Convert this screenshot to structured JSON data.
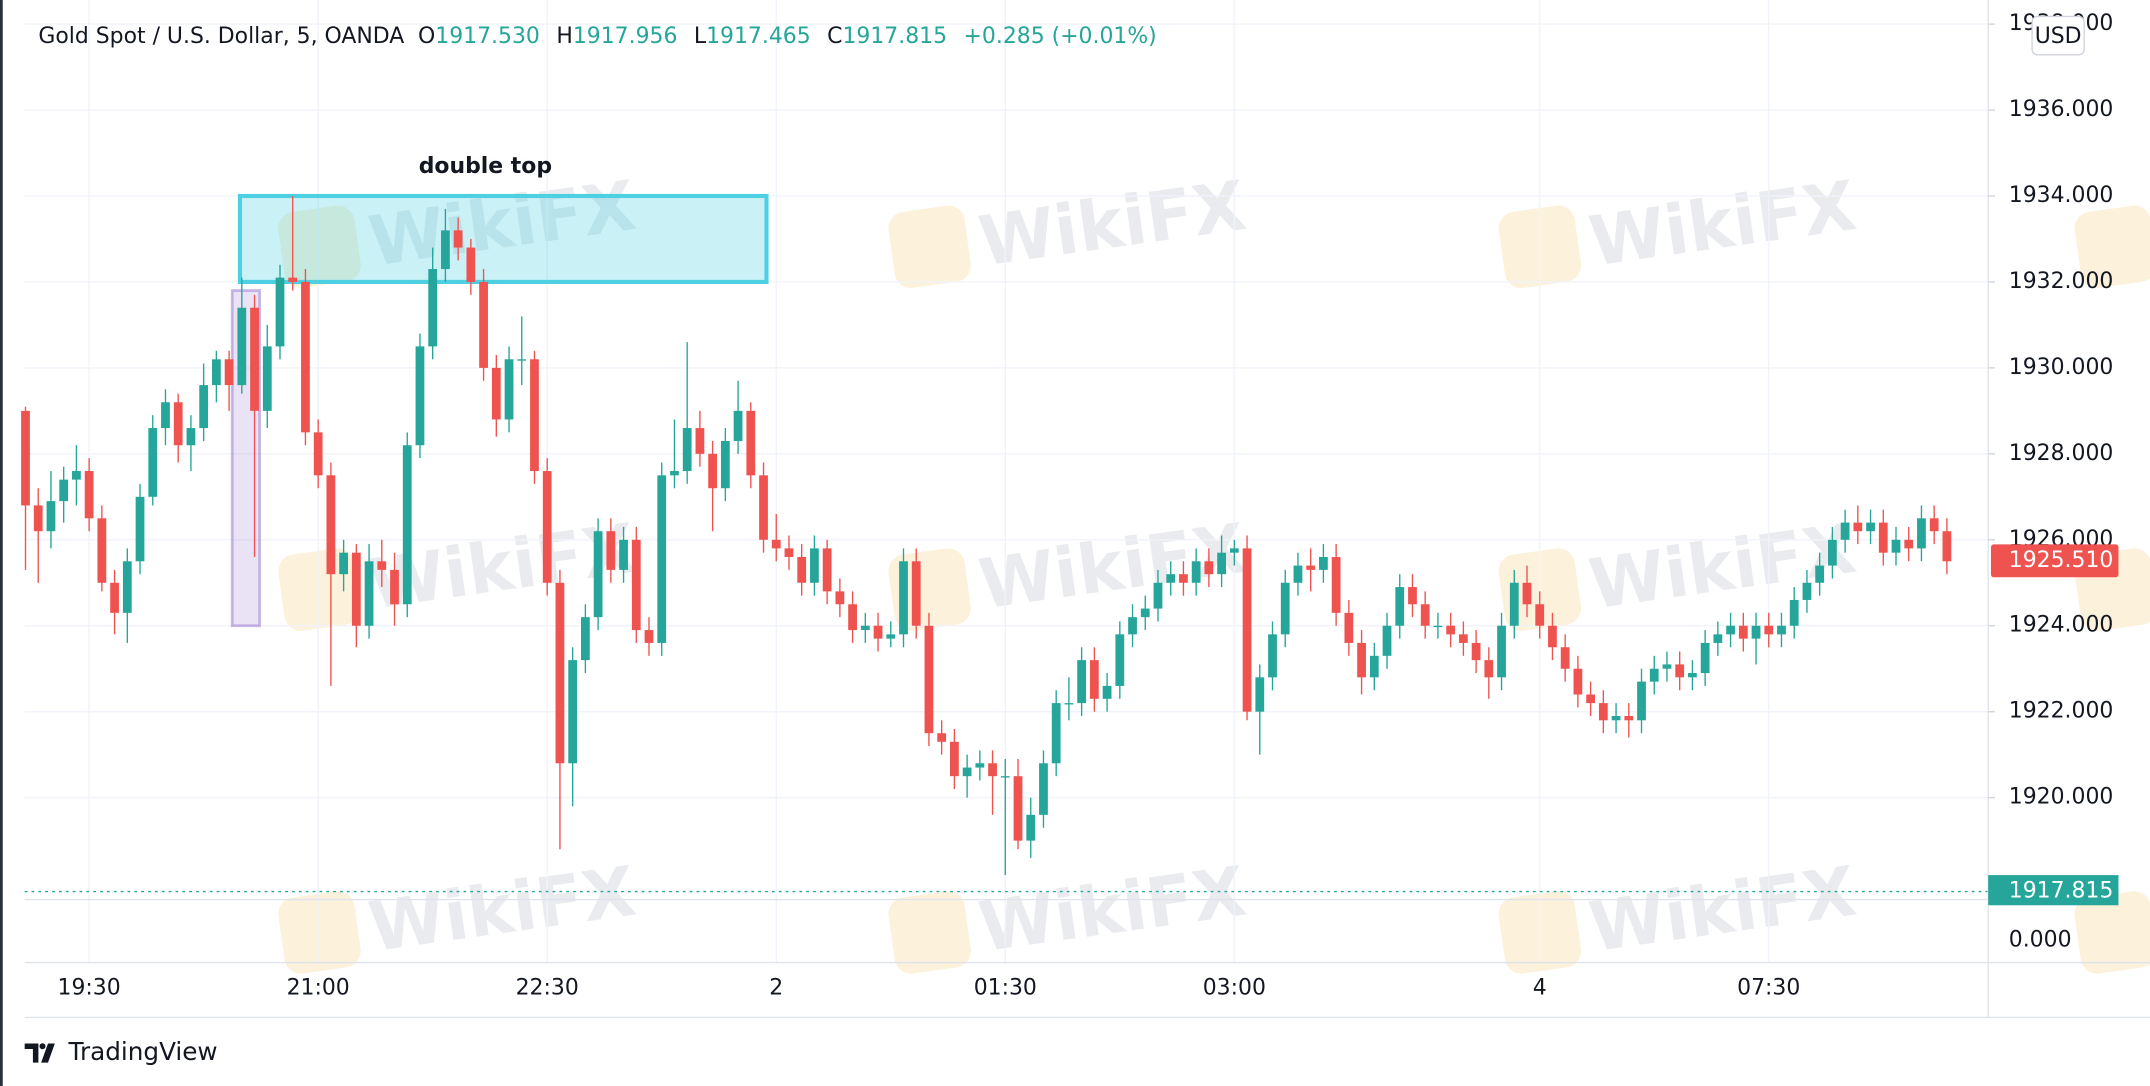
{
  "chart_data": {
    "type": "candlestick",
    "header": {
      "title": "Gold Spot / U.S. Dollar, 5, OANDA",
      "o_label": "O",
      "o_value": "1917.530",
      "h_label": "H",
      "h_value": "1917.956",
      "l_label": "L",
      "l_value": "1917.465",
      "c_label": "C",
      "c_value": "1917.815",
      "change": "+0.285 (+0.01%)"
    },
    "currency": "USD",
    "watermark": "WikiFX",
    "brand": "TradingView",
    "annotation": {
      "label": "double top",
      "y": [
        1932,
        1934
      ]
    },
    "highlight": {
      "y": [
        1924,
        1931.8
      ]
    },
    "last_price": {
      "value": 1925.51,
      "label": "1925.510"
    },
    "close_line": {
      "value": 1917.815,
      "label": "1917.815"
    },
    "lower_pane_label": "0.000",
    "up_color": "#26a69a",
    "down_color": "#ef5350",
    "ylim": [
      1917.63,
      1938.56
    ],
    "yticks": [
      {
        "value": 1920,
        "label": "1920.000"
      },
      {
        "value": 1922,
        "label": "1922.000"
      },
      {
        "value": 1924,
        "label": "1924.000"
      },
      {
        "value": 1926,
        "label": "1926.000"
      },
      {
        "value": 1928,
        "label": "1928.000"
      },
      {
        "value": 1930,
        "label": "1930.000"
      },
      {
        "value": 1932,
        "label": "1932.000"
      },
      {
        "value": 1934,
        "label": "1934.000"
      },
      {
        "value": 1936,
        "label": "1936.000"
      },
      {
        "value": 1938,
        "label": "1938.000"
      }
    ],
    "grid": true,
    "categories": [
      null,
      null,
      null,
      null,
      null,
      "19:30",
      null,
      null,
      null,
      null,
      null,
      null,
      null,
      null,
      null,
      null,
      null,
      null,
      null,
      null,
      null,
      null,
      null,
      "21:00",
      null,
      null,
      null,
      null,
      null,
      null,
      null,
      null,
      null,
      null,
      null,
      null,
      null,
      null,
      null,
      null,
      null,
      "22:30",
      null,
      null,
      null,
      null,
      null,
      null,
      null,
      null,
      null,
      null,
      null,
      null,
      null,
      null,
      null,
      null,
      null,
      "2",
      null,
      null,
      null,
      null,
      null,
      null,
      null,
      null,
      null,
      null,
      null,
      null,
      null,
      null,
      null,
      null,
      null,
      "01:30",
      null,
      null,
      null,
      null,
      null,
      null,
      null,
      null,
      null,
      null,
      null,
      null,
      null,
      null,
      null,
      null,
      null,
      "03:00",
      null,
      null,
      null,
      null,
      null,
      null,
      null,
      null,
      null,
      null,
      null,
      null,
      null,
      null,
      null,
      null,
      null,
      null,
      null,
      null,
      null,
      null,
      null,
      "4",
      null,
      null,
      null,
      null,
      null,
      null,
      null,
      null,
      null,
      null,
      null,
      null,
      null,
      null,
      null,
      null,
      null,
      "07:30",
      null,
      null,
      null,
      null,
      null,
      null,
      null,
      null,
      null,
      null,
      null,
      null,
      null,
      null
    ],
    "ohlc": [
      [
        1929.0,
        1929.1,
        1925.3,
        1926.8
      ],
      [
        1926.8,
        1927.2,
        1925.0,
        1926.2
      ],
      [
        1926.2,
        1927.6,
        1925.8,
        1926.9
      ],
      [
        1926.9,
        1927.7,
        1926.4,
        1927.4
      ],
      [
        1927.4,
        1928.2,
        1926.8,
        1927.6
      ],
      [
        1927.6,
        1927.9,
        1926.2,
        1926.5
      ],
      [
        1926.5,
        1926.8,
        1924.8,
        1925.0
      ],
      [
        1925.0,
        1925.3,
        1923.8,
        1924.3
      ],
      [
        1924.3,
        1925.8,
        1923.6,
        1925.5
      ],
      [
        1925.5,
        1927.3,
        1925.2,
        1927.0
      ],
      [
        1927.0,
        1928.9,
        1926.8,
        1928.6
      ],
      [
        1928.6,
        1929.5,
        1928.2,
        1929.2
      ],
      [
        1929.2,
        1929.4,
        1927.8,
        1928.2
      ],
      [
        1928.2,
        1928.9,
        1927.6,
        1928.6
      ],
      [
        1928.6,
        1930.1,
        1928.3,
        1929.6
      ],
      [
        1929.6,
        1930.4,
        1929.2,
        1930.2
      ],
      [
        1930.2,
        1930.4,
        1929.0,
        1929.6
      ],
      [
        1929.6,
        1932.1,
        1929.4,
        1931.4
      ],
      [
        1931.4,
        1931.7,
        1925.6,
        1929.0
      ],
      [
        1929.0,
        1931.0,
        1928.6,
        1930.5
      ],
      [
        1930.5,
        1932.4,
        1930.2,
        1932.1
      ],
      [
        1932.1,
        1934.0,
        1931.8,
        1932.0
      ],
      [
        1932.0,
        1932.3,
        1928.2,
        1928.5
      ],
      [
        1928.5,
        1928.8,
        1927.2,
        1927.5
      ],
      [
        1927.5,
        1927.8,
        1922.6,
        1925.2
      ],
      [
        1925.2,
        1926.0,
        1924.8,
        1925.7
      ],
      [
        1925.7,
        1925.9,
        1923.5,
        1924.0
      ],
      [
        1924.0,
        1925.9,
        1923.7,
        1925.5
      ],
      [
        1925.5,
        1926.0,
        1924.9,
        1925.3
      ],
      [
        1925.3,
        1925.7,
        1924.0,
        1924.5
      ],
      [
        1924.5,
        1928.5,
        1924.2,
        1928.2
      ],
      [
        1928.2,
        1930.8,
        1927.9,
        1930.5
      ],
      [
        1930.5,
        1932.8,
        1930.2,
        1932.3
      ],
      [
        1932.3,
        1933.7,
        1932.0,
        1933.2
      ],
      [
        1933.2,
        1933.5,
        1932.5,
        1932.8
      ],
      [
        1932.8,
        1933.0,
        1931.7,
        1932.0
      ],
      [
        1932.0,
        1932.3,
        1929.7,
        1930.0
      ],
      [
        1930.0,
        1930.3,
        1928.4,
        1928.8
      ],
      [
        1928.8,
        1930.5,
        1928.5,
        1930.2
      ],
      [
        1930.2,
        1931.2,
        1929.6,
        1930.2
      ],
      [
        1930.2,
        1930.4,
        1927.3,
        1927.6
      ],
      [
        1927.6,
        1927.9,
        1924.7,
        1925.0
      ],
      [
        1925.0,
        1925.3,
        1918.8,
        1920.8
      ],
      [
        1920.8,
        1923.5,
        1919.8,
        1923.2
      ],
      [
        1923.2,
        1924.5,
        1922.9,
        1924.2
      ],
      [
        1924.2,
        1926.5,
        1923.9,
        1926.2
      ],
      [
        1926.2,
        1926.5,
        1925.0,
        1925.3
      ],
      [
        1925.3,
        1926.3,
        1925.0,
        1926.0
      ],
      [
        1926.0,
        1926.3,
        1923.6,
        1923.9
      ],
      [
        1923.9,
        1924.2,
        1923.3,
        1923.6
      ],
      [
        1923.6,
        1927.8,
        1923.3,
        1927.5
      ],
      [
        1927.5,
        1928.8,
        1927.2,
        1927.6
      ],
      [
        1927.6,
        1930.6,
        1927.3,
        1928.6
      ],
      [
        1928.6,
        1929.0,
        1927.7,
        1928.0
      ],
      [
        1928.0,
        1928.3,
        1926.2,
        1927.2
      ],
      [
        1927.2,
        1928.6,
        1926.9,
        1928.3
      ],
      [
        1928.3,
        1929.7,
        1928.0,
        1929.0
      ],
      [
        1929.0,
        1929.2,
        1927.2,
        1927.5
      ],
      [
        1927.5,
        1927.8,
        1925.7,
        1926.0
      ],
      [
        1926.0,
        1926.6,
        1925.5,
        1925.8
      ],
      [
        1925.8,
        1926.1,
        1925.3,
        1925.6
      ],
      [
        1925.6,
        1925.9,
        1924.7,
        1925.0
      ],
      [
        1925.0,
        1926.1,
        1924.7,
        1925.8
      ],
      [
        1925.8,
        1926.0,
        1924.5,
        1924.8
      ],
      [
        1924.8,
        1925.1,
        1924.2,
        1924.5
      ],
      [
        1924.5,
        1924.8,
        1923.6,
        1923.9
      ],
      [
        1923.9,
        1924.3,
        1923.6,
        1924.0
      ],
      [
        1924.0,
        1924.3,
        1923.4,
        1923.7
      ],
      [
        1923.7,
        1924.1,
        1923.5,
        1923.8
      ],
      [
        1923.8,
        1925.8,
        1923.5,
        1925.5
      ],
      [
        1925.5,
        1925.8,
        1923.7,
        1924.0
      ],
      [
        1924.0,
        1924.3,
        1921.2,
        1921.5
      ],
      [
        1921.5,
        1921.8,
        1921.0,
        1921.3
      ],
      [
        1921.3,
        1921.6,
        1920.2,
        1920.5
      ],
      [
        1920.5,
        1921.0,
        1920.0,
        1920.7
      ],
      [
        1920.7,
        1921.1,
        1920.4,
        1920.8
      ],
      [
        1920.8,
        1921.1,
        1919.6,
        1920.5
      ],
      [
        1920.5,
        1920.9,
        1918.2,
        1920.5
      ],
      [
        1920.5,
        1920.9,
        1918.8,
        1919.0
      ],
      [
        1919.0,
        1920.0,
        1918.6,
        1919.6
      ],
      [
        1919.6,
        1921.1,
        1919.3,
        1920.8
      ],
      [
        1920.8,
        1922.5,
        1920.5,
        1922.2
      ],
      [
        1922.2,
        1922.8,
        1921.8,
        1922.2
      ],
      [
        1922.2,
        1923.5,
        1921.9,
        1923.2
      ],
      [
        1923.2,
        1923.5,
        1922.0,
        1922.3
      ],
      [
        1922.3,
        1922.9,
        1922.0,
        1922.6
      ],
      [
        1922.6,
        1924.1,
        1922.3,
        1923.8
      ],
      [
        1923.8,
        1924.5,
        1923.5,
        1924.2
      ],
      [
        1924.2,
        1924.7,
        1923.9,
        1924.4
      ],
      [
        1924.4,
        1925.3,
        1924.1,
        1925.0
      ],
      [
        1925.0,
        1925.5,
        1924.7,
        1925.2
      ],
      [
        1925.2,
        1925.5,
        1924.7,
        1925.0
      ],
      [
        1925.0,
        1925.8,
        1924.7,
        1925.5
      ],
      [
        1925.5,
        1925.8,
        1924.9,
        1925.2
      ],
      [
        1925.2,
        1926.1,
        1924.9,
        1925.7
      ],
      [
        1925.7,
        1926.0,
        1925.4,
        1925.8
      ],
      [
        1925.8,
        1926.1,
        1921.8,
        1922.0
      ],
      [
        1922.0,
        1923.1,
        1921.0,
        1922.8
      ],
      [
        1922.8,
        1924.1,
        1922.5,
        1923.8
      ],
      [
        1923.8,
        1925.3,
        1923.5,
        1925.0
      ],
      [
        1925.0,
        1925.7,
        1924.7,
        1925.4
      ],
      [
        1925.4,
        1925.8,
        1924.8,
        1925.3
      ],
      [
        1925.3,
        1925.9,
        1925.0,
        1925.6
      ],
      [
        1925.6,
        1925.9,
        1924.0,
        1924.3
      ],
      [
        1924.3,
        1924.6,
        1923.3,
        1923.6
      ],
      [
        1923.6,
        1923.9,
        1922.4,
        1922.8
      ],
      [
        1922.8,
        1923.6,
        1922.5,
        1923.3
      ],
      [
        1923.3,
        1924.3,
        1923.0,
        1924.0
      ],
      [
        1924.0,
        1925.2,
        1923.7,
        1924.9
      ],
      [
        1924.9,
        1925.2,
        1924.2,
        1924.5
      ],
      [
        1924.5,
        1924.8,
        1923.7,
        1924.0
      ],
      [
        1924.0,
        1924.3,
        1923.7,
        1924.0
      ],
      [
        1924.0,
        1924.3,
        1923.5,
        1923.8
      ],
      [
        1923.8,
        1924.1,
        1923.3,
        1923.6
      ],
      [
        1923.6,
        1923.9,
        1922.9,
        1923.2
      ],
      [
        1923.2,
        1923.5,
        1922.3,
        1922.8
      ],
      [
        1922.8,
        1924.3,
        1922.5,
        1924.0
      ],
      [
        1924.0,
        1925.3,
        1923.7,
        1925.0
      ],
      [
        1925.0,
        1925.4,
        1924.2,
        1924.5
      ],
      [
        1924.5,
        1924.8,
        1923.7,
        1924.0
      ],
      [
        1924.0,
        1924.3,
        1923.2,
        1923.5
      ],
      [
        1923.5,
        1923.8,
        1922.7,
        1923.0
      ],
      [
        1923.0,
        1923.3,
        1922.1,
        1922.4
      ],
      [
        1922.4,
        1922.7,
        1921.9,
        1922.2
      ],
      [
        1922.2,
        1922.5,
        1921.5,
        1921.8
      ],
      [
        1921.8,
        1922.2,
        1921.5,
        1921.9
      ],
      [
        1921.9,
        1922.2,
        1921.4,
        1921.8
      ],
      [
        1921.8,
        1923.0,
        1921.5,
        1922.7
      ],
      [
        1922.7,
        1923.3,
        1922.4,
        1923.0
      ],
      [
        1923.0,
        1923.4,
        1922.7,
        1923.1
      ],
      [
        1923.1,
        1923.4,
        1922.5,
        1922.8
      ],
      [
        1922.8,
        1923.2,
        1922.5,
        1922.9
      ],
      [
        1922.9,
        1923.9,
        1922.6,
        1923.6
      ],
      [
        1923.6,
        1924.1,
        1923.3,
        1923.8
      ],
      [
        1923.8,
        1924.3,
        1923.5,
        1924.0
      ],
      [
        1924.0,
        1924.3,
        1923.4,
        1923.7
      ],
      [
        1923.7,
        1924.3,
        1923.1,
        1924.0
      ],
      [
        1924.0,
        1924.3,
        1923.5,
        1923.8
      ],
      [
        1923.8,
        1924.3,
        1923.5,
        1924.0
      ],
      [
        1924.0,
        1924.9,
        1923.7,
        1924.6
      ],
      [
        1924.6,
        1925.3,
        1924.3,
        1925.0
      ],
      [
        1925.0,
        1925.7,
        1924.7,
        1925.4
      ],
      [
        1925.4,
        1926.3,
        1925.1,
        1926.0
      ],
      [
        1926.0,
        1926.7,
        1925.7,
        1926.4
      ],
      [
        1926.4,
        1926.8,
        1925.9,
        1926.2
      ],
      [
        1926.2,
        1926.7,
        1925.9,
        1926.4
      ],
      [
        1926.4,
        1926.7,
        1925.4,
        1925.7
      ],
      [
        1925.7,
        1926.3,
        1925.4,
        1926.0
      ],
      [
        1926.0,
        1926.3,
        1925.5,
        1925.8
      ],
      [
        1925.8,
        1926.8,
        1925.5,
        1926.5
      ],
      [
        1926.5,
        1926.8,
        1925.9,
        1926.2
      ],
      [
        1926.2,
        1926.5,
        1925.2,
        1925.5
      ]
    ]
  }
}
